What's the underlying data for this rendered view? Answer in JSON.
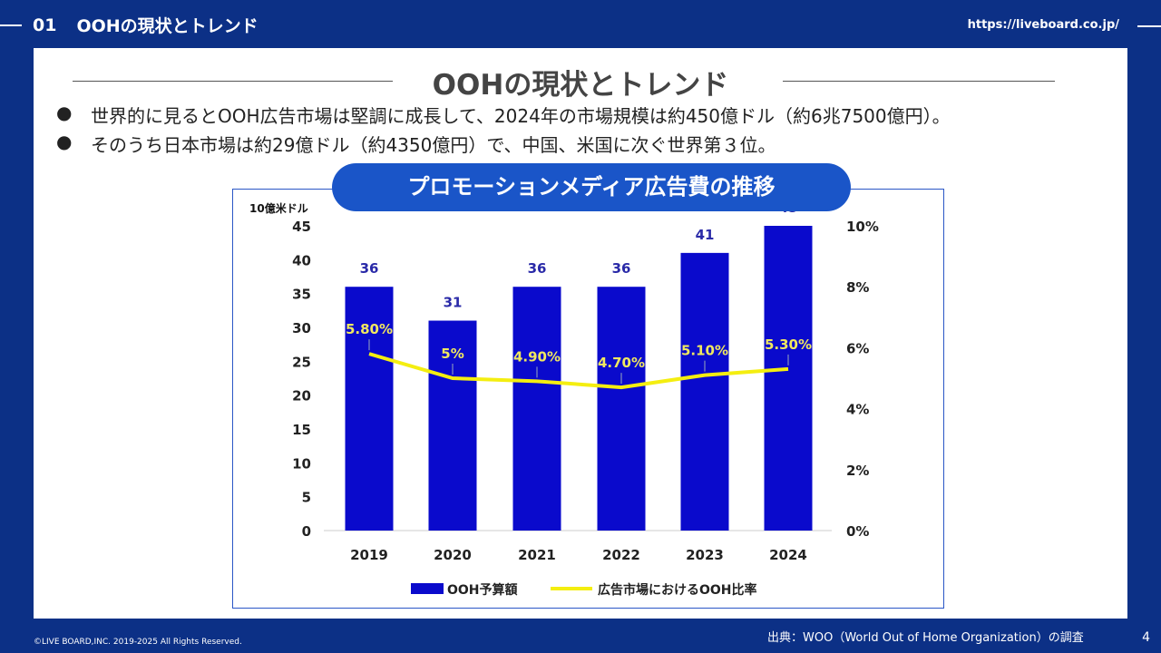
{
  "header": {
    "section_number": "01",
    "section_title": "OOHの現状とトレンド",
    "url": "https://liveboard.co.jp/"
  },
  "slide": {
    "title": "OOHの現状とトレンド",
    "bullets": [
      "世界的に見るとOOH広告市場は堅調に成長して、2024年の市場規模は約450億ドル（約6兆7500億円）。",
      "そのうち日本市場は約29億ドル（約4350億円）で、中国、米国に次ぐ世界第３位。"
    ],
    "bullet_glyph": "●"
  },
  "chart_data": {
    "type": "bar",
    "title": "プロモーションメディア広告費の推移",
    "categories": [
      "2019",
      "2020",
      "2021",
      "2022",
      "2023",
      "2024"
    ],
    "ylabel": "10億米ドル",
    "ylim": [
      0,
      45
    ],
    "yticks": [
      "0",
      "5",
      "10",
      "15",
      "20",
      "25",
      "30",
      "35",
      "40",
      "45"
    ],
    "y2lim": [
      0,
      10
    ],
    "y2ticks": [
      "0%",
      "2%",
      "4%",
      "6%",
      "8%",
      "10%"
    ],
    "series": [
      {
        "name": "OOH予算額",
        "type": "bar",
        "color": "#0a0acc",
        "values": [
          36,
          31,
          36,
          36,
          41,
          45
        ],
        "labels": [
          "36",
          "31",
          "36",
          "36",
          "41",
          "45"
        ]
      },
      {
        "name": "広告市場におけるOOH比率",
        "type": "line",
        "axis": "right",
        "color": "#f4ee10",
        "values": [
          5.8,
          5.0,
          4.9,
          4.7,
          5.1,
          5.3
        ],
        "labels": [
          "5.80%",
          "5%",
          "4.90%",
          "4.70%",
          "5.10%",
          "5.30%"
        ]
      }
    ],
    "legend": "bottom",
    "grid": false
  },
  "footer": {
    "copyright": "©LIVE BOARD,INC. 2019-2025 All Rights Reserved.",
    "source": "出典：WOO（World Out of Home Organization）の調査",
    "page": "4"
  }
}
